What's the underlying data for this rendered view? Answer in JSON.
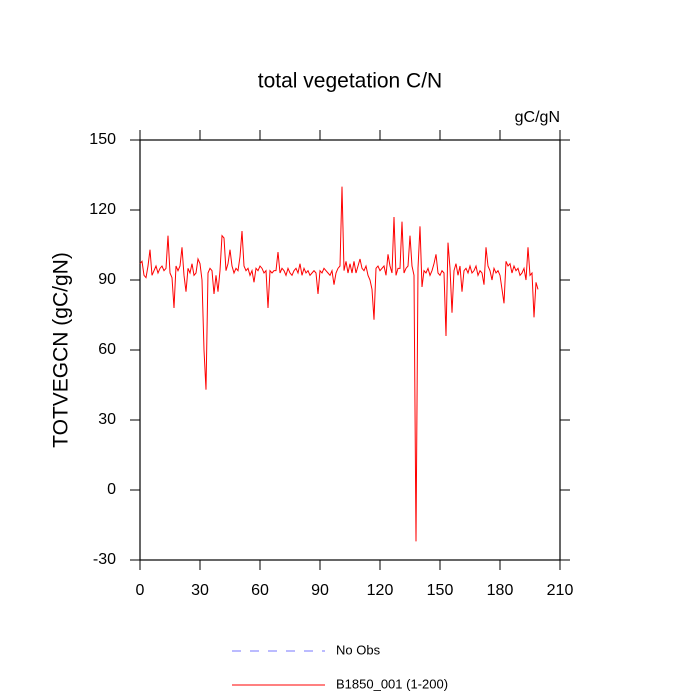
{
  "chart_data": {
    "type": "line",
    "title": "total vegetation C/N",
    "units_label": "gC/gN",
    "y_label": "TOTVEGCN  (gC/gN)",
    "xlim": [
      0,
      210
    ],
    "xticks": [
      0,
      30,
      60,
      90,
      120,
      150,
      180,
      210
    ],
    "ylim": [
      -30,
      150
    ],
    "yticks": [
      -30,
      0,
      30,
      60,
      90,
      120,
      150
    ],
    "reference": {
      "name": "No Obs",
      "color": "#7777ff",
      "style": "dashed"
    },
    "x": [
      0,
      1,
      2,
      3,
      4,
      5,
      6,
      7,
      8,
      9,
      10,
      11,
      12,
      13,
      14,
      15,
      16,
      17,
      18,
      19,
      20,
      21,
      22,
      23,
      24,
      25,
      26,
      27,
      28,
      29,
      30,
      31,
      32,
      33,
      34,
      35,
      36,
      37,
      38,
      39,
      40,
      41,
      42,
      43,
      44,
      45,
      46,
      47,
      48,
      49,
      50,
      51,
      52,
      53,
      54,
      55,
      56,
      57,
      58,
      59,
      60,
      61,
      62,
      63,
      64,
      65,
      66,
      67,
      68,
      69,
      70,
      71,
      72,
      73,
      74,
      75,
      76,
      77,
      78,
      79,
      80,
      81,
      82,
      83,
      84,
      85,
      86,
      87,
      88,
      89,
      90,
      91,
      92,
      93,
      94,
      95,
      96,
      97,
      98,
      99,
      100,
      101,
      102,
      103,
      104,
      105,
      106,
      107,
      108,
      109,
      110,
      111,
      112,
      113,
      114,
      115,
      116,
      117,
      118,
      119,
      120,
      121,
      122,
      123,
      124,
      125,
      126,
      127,
      128,
      129,
      130,
      131,
      132,
      133,
      134,
      135,
      136,
      137,
      138,
      139,
      140,
      141,
      142,
      143,
      144,
      145,
      146,
      147,
      148,
      149,
      150,
      151,
      152,
      153,
      154,
      155,
      156,
      157,
      158,
      159,
      160,
      161,
      162,
      163,
      164,
      165,
      166,
      167,
      168,
      169,
      170,
      171,
      172,
      173,
      174,
      175,
      176,
      177,
      178,
      179,
      180,
      181,
      182,
      183,
      184,
      185,
      186,
      187,
      188,
      189,
      190,
      191,
      192,
      193,
      194,
      195,
      196,
      197,
      198,
      199
    ],
    "series": [
      {
        "name": "B1850_001 (1-200)",
        "color": "#ff0000",
        "values": [
          97,
          98,
          92,
          91,
          96,
          103,
          92,
          94,
          96,
          93,
          95,
          96,
          94,
          95,
          109,
          93,
          91,
          78,
          96,
          94,
          96,
          104,
          92,
          85,
          95,
          93,
          97,
          92,
          93,
          99,
          97,
          90,
          60,
          43,
          93,
          95,
          94,
          84,
          92,
          85,
          94,
          109,
          108,
          94,
          97,
          103,
          96,
          93,
          95,
          94,
          100,
          111,
          96,
          94,
          95,
          92,
          94,
          89,
          95,
          94,
          96,
          95,
          93,
          94,
          78,
          94,
          93,
          94,
          94,
          102,
          93,
          95,
          94,
          92,
          95,
          93,
          92,
          94,
          95,
          93,
          97,
          92,
          95,
          93,
          94,
          92,
          93,
          94,
          93,
          84,
          94,
          93,
          95,
          94,
          93,
          92,
          94,
          88,
          93,
          95,
          96,
          130,
          94,
          98,
          93,
          97,
          93,
          98,
          93,
          96,
          99,
          95,
          94,
          96,
          92,
          90,
          86,
          73,
          95,
          96,
          94,
          95,
          96,
          92,
          101,
          96,
          93,
          117,
          92,
          95,
          95,
          115,
          93,
          95,
          96,
          109,
          96,
          92,
          -22,
          95,
          113,
          87,
          94,
          93,
          95,
          92,
          94,
          97,
          101,
          93,
          92,
          94,
          93,
          66,
          106,
          95,
          76,
          94,
          97,
          92,
          96,
          85,
          94,
          95,
          93,
          96,
          93,
          94,
          96,
          92,
          94,
          93,
          88,
          104,
          96,
          94,
          90,
          95,
          93,
          94,
          92,
          86,
          80,
          98,
          96,
          97,
          93,
          96,
          94,
          95,
          92,
          93,
          95,
          90,
          104,
          92,
          93,
          74,
          89,
          86
        ]
      }
    ]
  }
}
